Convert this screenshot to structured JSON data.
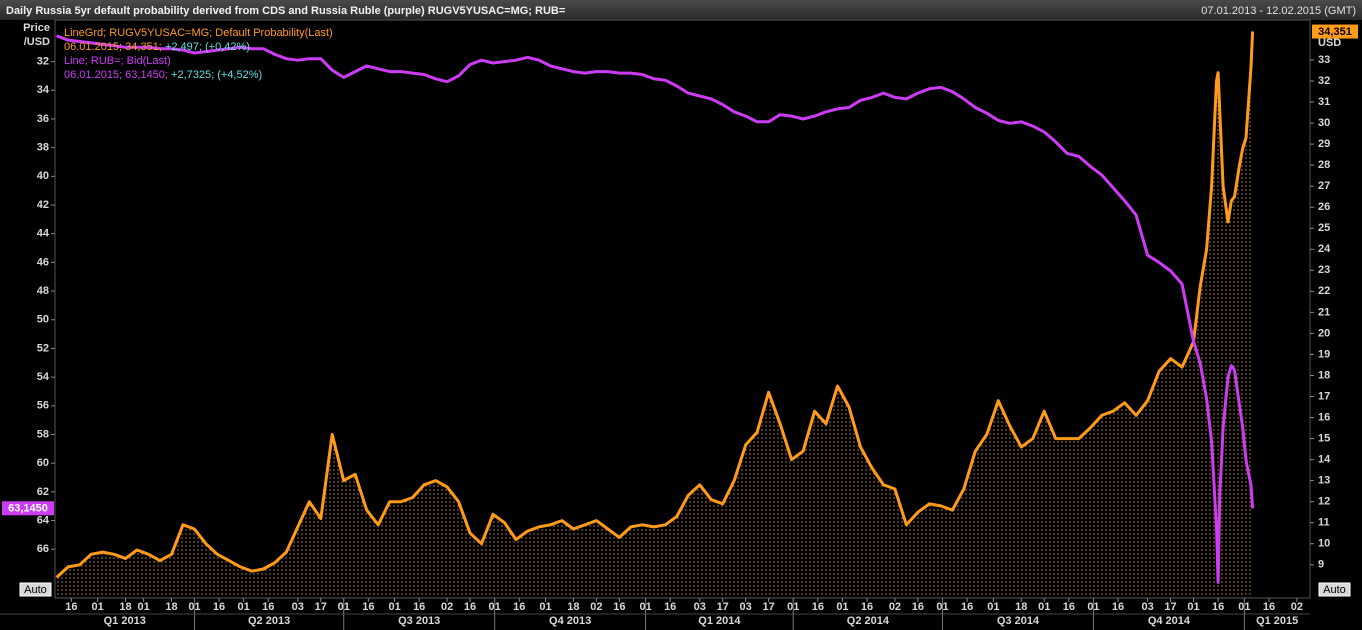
{
  "chart_data": {
    "type": "line",
    "title": "Daily Russia 5yr default probability derived from CDS and Russia Ruble (purple) RUGV5YUSAC=MG; RUB=",
    "date_range": "07.01.2013 - 12.02.2015 (GMT)",
    "ylabel": [
      "Price",
      "/USD"
    ],
    "y2label": "USD",
    "left_button": "Auto",
    "right_button": "Auto",
    "xlim": [
      "2013-01-06",
      "2015-02-10"
    ],
    "ylim": [
      69.4,
      29.1
    ],
    "yticks": [
      32,
      34,
      36,
      38,
      40,
      42,
      44,
      46,
      48,
      50,
      52,
      54,
      56,
      58,
      60,
      62,
      64,
      66
    ],
    "y2lim": [
      7.42,
      34.9
    ],
    "y2ticks": [
      9,
      10,
      11,
      12,
      13,
      14,
      15,
      16,
      17,
      18,
      19,
      20,
      21,
      22,
      23,
      24,
      25,
      26,
      27,
      28,
      29,
      30,
      31,
      32,
      33
    ],
    "grid": false,
    "xticks": [
      {
        "value": "2013-01-16",
        "label": "16"
      },
      {
        "value": "2013-02-01",
        "label": "01"
      },
      {
        "value": "2013-02-18",
        "label": "18"
      },
      {
        "value": "2013-03-01",
        "label": "01"
      },
      {
        "value": "2013-03-18",
        "label": "18"
      },
      {
        "value": "2013-04-01",
        "label": "01"
      },
      {
        "value": "2013-04-16",
        "label": "16"
      },
      {
        "value": "2013-05-01",
        "label": "01"
      },
      {
        "value": "2013-05-16",
        "label": "16"
      },
      {
        "value": "2013-06-03",
        "label": "03"
      },
      {
        "value": "2013-06-17",
        "label": "17"
      },
      {
        "value": "2013-07-01",
        "label": "01"
      },
      {
        "value": "2013-07-16",
        "label": "16"
      },
      {
        "value": "2013-08-01",
        "label": "01"
      },
      {
        "value": "2013-08-16",
        "label": "16"
      },
      {
        "value": "2013-09-02",
        "label": "02"
      },
      {
        "value": "2013-09-16",
        "label": "16"
      },
      {
        "value": "2013-10-01",
        "label": "01"
      },
      {
        "value": "2013-10-16",
        "label": "16"
      },
      {
        "value": "2013-11-01",
        "label": "01"
      },
      {
        "value": "2013-11-18",
        "label": "18"
      },
      {
        "value": "2013-12-02",
        "label": "02"
      },
      {
        "value": "2013-12-16",
        "label": "16"
      },
      {
        "value": "2014-01-01",
        "label": "01"
      },
      {
        "value": "2014-01-16",
        "label": "16"
      },
      {
        "value": "2014-02-03",
        "label": "03"
      },
      {
        "value": "2014-02-17",
        "label": "17"
      },
      {
        "value": "2014-03-03",
        "label": "03"
      },
      {
        "value": "2014-03-17",
        "label": "17"
      },
      {
        "value": "2014-04-01",
        "label": "01"
      },
      {
        "value": "2014-04-16",
        "label": "16"
      },
      {
        "value": "2014-05-01",
        "label": "01"
      },
      {
        "value": "2014-05-16",
        "label": "16"
      },
      {
        "value": "2014-06-02",
        "label": "02"
      },
      {
        "value": "2014-06-16",
        "label": "16"
      },
      {
        "value": "2014-07-01",
        "label": "01"
      },
      {
        "value": "2014-07-16",
        "label": "16"
      },
      {
        "value": "2014-08-01",
        "label": "01"
      },
      {
        "value": "2014-08-18",
        "label": "18"
      },
      {
        "value": "2014-09-01",
        "label": "01"
      },
      {
        "value": "2014-09-16",
        "label": "16"
      },
      {
        "value": "2014-10-01",
        "label": "01"
      },
      {
        "value": "2014-10-16",
        "label": "16"
      },
      {
        "value": "2014-11-03",
        "label": "03"
      },
      {
        "value": "2014-11-17",
        "label": "17"
      },
      {
        "value": "2014-12-01",
        "label": "01"
      },
      {
        "value": "2014-12-16",
        "label": "16"
      },
      {
        "value": "2015-01-01",
        "label": "01"
      },
      {
        "value": "2015-01-16",
        "label": "16"
      },
      {
        "value": "2015-02-02",
        "label": "02"
      }
    ],
    "quarters": [
      {
        "value": "2013-01-01",
        "label": "Q1 2013"
      },
      {
        "value": "2013-04-01",
        "label": "Q2 2013"
      },
      {
        "value": "2013-07-01",
        "label": "Q3 2013"
      },
      {
        "value": "2013-10-01",
        "label": "Q4 2013"
      },
      {
        "value": "2014-01-01",
        "label": "Q1 2014"
      },
      {
        "value": "2014-04-01",
        "label": "Q2 2014"
      },
      {
        "value": "2014-07-01",
        "label": "Q3 2014"
      },
      {
        "value": "2014-10-01",
        "label": "Q4 2014"
      },
      {
        "value": "2015-01-01",
        "label": "Q1 2015"
      }
    ],
    "x": [
      "2013-01-07",
      "2013-01-14",
      "2013-01-21",
      "2013-01-28",
      "2013-02-04",
      "2013-02-11",
      "2013-02-18",
      "2013-02-25",
      "2013-03-04",
      "2013-03-11",
      "2013-03-18",
      "2013-03-25",
      "2013-04-01",
      "2013-04-08",
      "2013-04-15",
      "2013-04-22",
      "2013-04-29",
      "2013-05-06",
      "2013-05-13",
      "2013-05-20",
      "2013-05-27",
      "2013-06-03",
      "2013-06-10",
      "2013-06-17",
      "2013-06-24",
      "2013-07-01",
      "2013-07-08",
      "2013-07-15",
      "2013-07-22",
      "2013-07-29",
      "2013-08-05",
      "2013-08-12",
      "2013-08-19",
      "2013-08-26",
      "2013-09-02",
      "2013-09-09",
      "2013-09-16",
      "2013-09-23",
      "2013-09-30",
      "2013-10-07",
      "2013-10-14",
      "2013-10-21",
      "2013-10-28",
      "2013-11-04",
      "2013-11-11",
      "2013-11-18",
      "2013-11-25",
      "2013-12-02",
      "2013-12-09",
      "2013-12-16",
      "2013-12-23",
      "2013-12-30",
      "2014-01-06",
      "2014-01-13",
      "2014-01-20",
      "2014-01-27",
      "2014-02-03",
      "2014-02-10",
      "2014-02-17",
      "2014-02-24",
      "2014-03-03",
      "2014-03-10",
      "2014-03-17",
      "2014-03-24",
      "2014-03-31",
      "2014-04-07",
      "2014-04-14",
      "2014-04-21",
      "2014-04-28",
      "2014-05-05",
      "2014-05-12",
      "2014-05-19",
      "2014-05-26",
      "2014-06-02",
      "2014-06-09",
      "2014-06-16",
      "2014-06-23",
      "2014-06-30",
      "2014-07-07",
      "2014-07-14",
      "2014-07-21",
      "2014-07-28",
      "2014-08-04",
      "2014-08-11",
      "2014-08-18",
      "2014-08-25",
      "2014-09-01",
      "2014-09-08",
      "2014-09-15",
      "2014-09-22",
      "2014-09-29",
      "2014-10-06",
      "2014-10-13",
      "2014-10-20",
      "2014-10-27",
      "2014-11-03",
      "2014-11-10",
      "2014-11-17",
      "2014-11-24",
      "2014-12-01",
      "2014-12-05",
      "2014-12-09",
      "2014-12-12",
      "2014-12-15",
      "2014-12-16",
      "2014-12-17",
      "2014-12-18",
      "2014-12-19",
      "2014-12-22",
      "2014-12-24",
      "2014-12-26",
      "2014-12-29",
      "2014-12-31",
      "2015-01-02",
      "2015-01-05",
      "2015-01-06"
    ],
    "series": [
      {
        "name": "LineGrd; RUGV5YUSAC=MG; Default Probability(Last)",
        "last_label": "06.01.2015; 34,351;",
        "change_label": "+2,497; (+0,42%)",
        "last_value_label": "34,351",
        "color": "#ff9b1a",
        "area": true,
        "axis": "y2",
        "values": [
          8.4,
          8.9,
          9.0,
          9.5,
          9.6,
          9.5,
          9.3,
          9.7,
          9.5,
          9.2,
          9.5,
          10.9,
          10.7,
          10.0,
          9.5,
          9.2,
          8.9,
          8.7,
          8.8,
          9.1,
          9.6,
          10.8,
          12.0,
          11.2,
          15.2,
          13.0,
          13.3,
          11.6,
          10.9,
          12.0,
          12.0,
          12.2,
          12.8,
          13.0,
          12.7,
          12.0,
          10.5,
          10.0,
          11.4,
          11.0,
          10.2,
          10.6,
          10.8,
          10.9,
          11.1,
          10.7,
          10.9,
          11.1,
          10.7,
          10.3,
          10.8,
          10.9,
          10.8,
          10.9,
          11.3,
          12.3,
          12.8,
          12.1,
          11.9,
          13.0,
          14.7,
          15.3,
          17.2,
          15.7,
          14.0,
          14.4,
          16.3,
          15.7,
          17.5,
          16.5,
          14.6,
          13.6,
          12.8,
          12.6,
          10.9,
          11.5,
          11.9,
          11.8,
          11.6,
          12.6,
          14.4,
          15.2,
          16.8,
          15.6,
          14.6,
          15.0,
          16.3,
          15.0,
          15.0,
          15.0,
          15.5,
          16.1,
          16.3,
          16.7,
          16.1,
          16.8,
          18.2,
          18.8,
          18.4,
          19.6,
          22.2,
          24.0,
          27.0,
          32.0,
          32.4,
          30.5,
          28.8,
          27.0,
          25.3,
          26.3,
          26.5,
          28.0,
          28.8,
          29.3,
          32.6,
          34.351
        ]
      },
      {
        "name": "Line; RUB=; Bid(Last)",
        "last_label": "06.01.2015; 63,1450;",
        "change_label": "+2,7325; (+4,52%)",
        "last_value_label": "63,1450",
        "color": "#cc3cf5",
        "area": false,
        "axis": "y",
        "values": [
          30.2,
          30.5,
          30.6,
          30.7,
          30.8,
          30.9,
          31.0,
          31.0,
          31.0,
          31.1,
          31.1,
          31.2,
          31.4,
          31.3,
          31.2,
          31.1,
          31.0,
          31.1,
          31.1,
          31.5,
          31.8,
          31.9,
          31.8,
          31.8,
          32.6,
          33.1,
          32.7,
          32.3,
          32.5,
          32.7,
          32.7,
          32.8,
          32.9,
          33.2,
          33.4,
          33.0,
          32.2,
          31.9,
          32.1,
          32.0,
          31.9,
          31.7,
          31.9,
          32.3,
          32.5,
          32.7,
          32.8,
          32.7,
          32.7,
          32.8,
          32.8,
          32.9,
          33.2,
          33.3,
          33.7,
          34.2,
          34.4,
          34.6,
          35.0,
          35.5,
          35.8,
          36.2,
          36.2,
          35.7,
          35.8,
          36.0,
          35.8,
          35.5,
          35.3,
          35.2,
          34.7,
          34.5,
          34.2,
          34.5,
          34.6,
          34.2,
          33.9,
          33.8,
          34.1,
          34.6,
          35.2,
          35.6,
          36.1,
          36.3,
          36.2,
          36.5,
          36.9,
          37.6,
          38.4,
          38.6,
          39.3,
          39.9,
          40.8,
          41.7,
          42.7,
          45.5,
          46.0,
          46.6,
          47.5,
          51.5,
          53.0,
          55.5,
          58.5,
          64.5,
          68.3,
          62.0,
          60.0,
          57.5,
          54.0,
          53.2,
          53.5,
          56.0,
          57.5,
          59.8,
          61.5,
          63.145
        ]
      }
    ]
  }
}
